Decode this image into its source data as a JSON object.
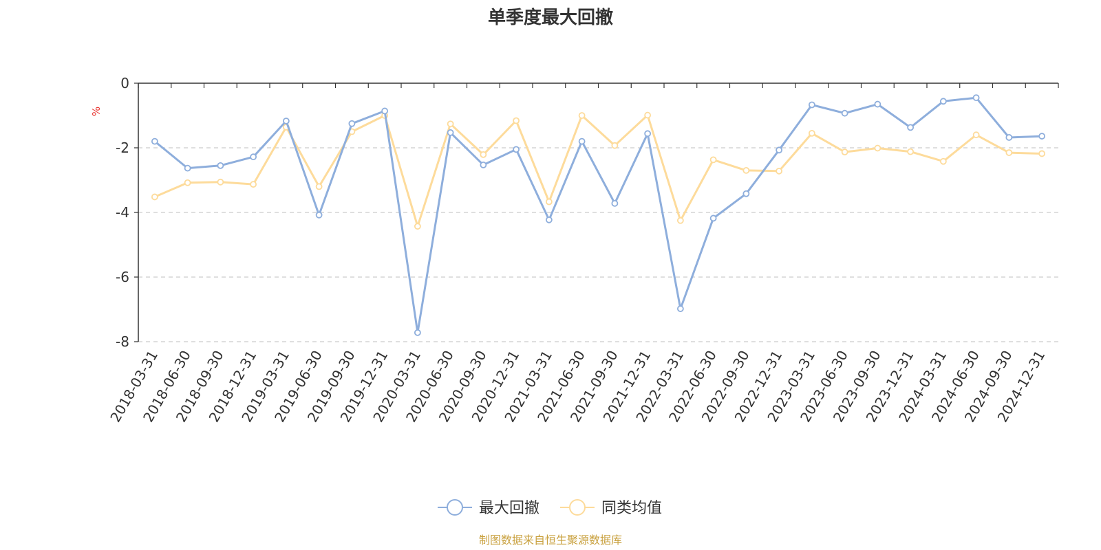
{
  "chart_data": {
    "type": "line",
    "title": "单季度最大回撤",
    "ylabel": "%",
    "ylim": [
      -8,
      0
    ],
    "yticks": [
      0,
      -2,
      -4,
      -6,
      -8
    ],
    "grid": "horizontal dashed",
    "legend_position": "bottom-center",
    "categories": [
      "2018-03-31",
      "2018-06-30",
      "2018-09-30",
      "2018-12-31",
      "2019-03-31",
      "2019-06-30",
      "2019-09-30",
      "2019-12-31",
      "2020-03-31",
      "2020-06-30",
      "2020-09-30",
      "2020-12-31",
      "2021-03-31",
      "2021-06-30",
      "2021-09-30",
      "2021-12-31",
      "2022-03-31",
      "2022-06-30",
      "2022-09-30",
      "2022-12-31",
      "2023-03-31",
      "2023-06-30",
      "2023-09-30",
      "2023-12-31",
      "2024-03-31",
      "2024-06-30",
      "2024-09-30",
      "2024-12-31"
    ],
    "series": [
      {
        "name": "最大回撤",
        "color": "#8eaedc",
        "values": [
          -1.8,
          -2.63,
          -2.55,
          -2.28,
          -1.17,
          -4.08,
          -1.25,
          -0.86,
          -7.72,
          -1.53,
          -2.53,
          -2.05,
          -4.23,
          -1.8,
          -3.72,
          -1.56,
          -6.98,
          -4.18,
          -3.42,
          -2.07,
          -0.67,
          -0.93,
          -0.65,
          -1.37,
          -0.56,
          -0.45,
          -1.68,
          -1.64
        ]
      },
      {
        "name": "同类均值",
        "color": "#fddb9b",
        "values": [
          -3.52,
          -3.08,
          -3.06,
          -3.13,
          -1.36,
          -3.2,
          -1.5,
          -1.0,
          -4.43,
          -1.26,
          -2.21,
          -1.16,
          -3.67,
          -1.0,
          -1.93,
          -0.99,
          -4.25,
          -2.37,
          -2.7,
          -2.72,
          -1.55,
          -2.13,
          -2.01,
          -2.12,
          -2.42,
          -1.6,
          -2.15,
          -2.18
        ]
      }
    ]
  },
  "source_text": "制图数据来自恒生聚源数据库",
  "colors": {
    "source_text": "#c9a13f",
    "unit_label": "#e8322e",
    "grid": "#cccccc",
    "axis": "#333333"
  }
}
